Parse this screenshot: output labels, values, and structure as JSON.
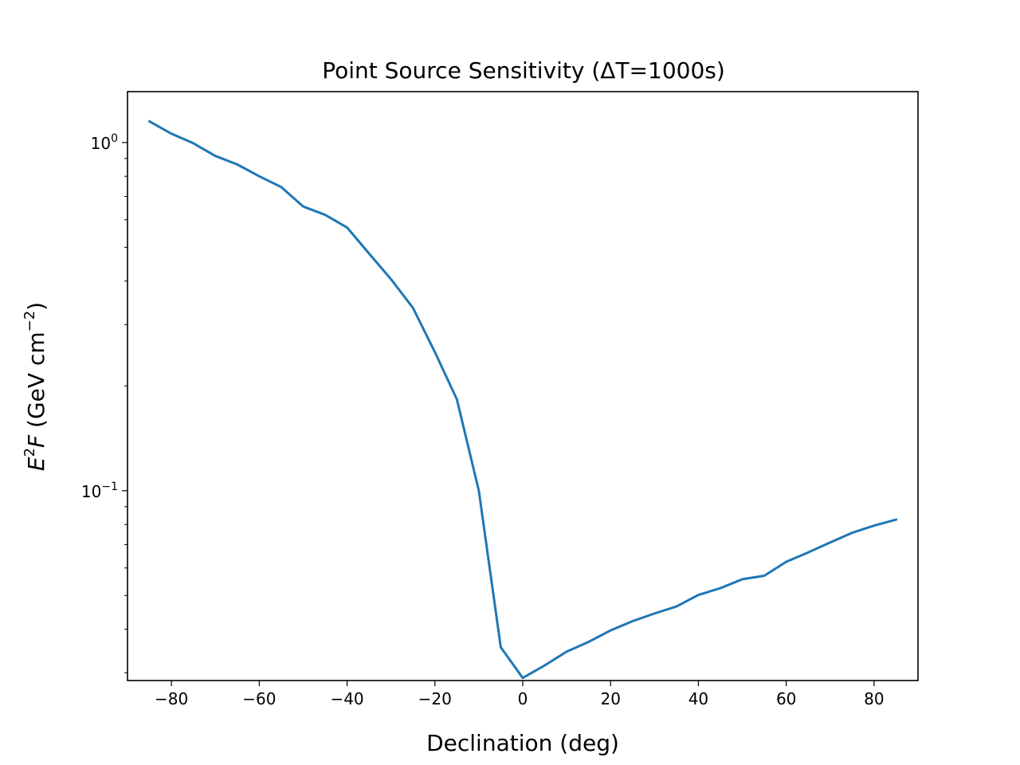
{
  "chart_data": {
    "type": "line",
    "title": "Point Source Sensitivity (ΔT=1000s)",
    "xlabel": "Declination (deg)",
    "ylabel": {
      "base": "E",
      "base_sup": "2",
      "var": "F",
      "unit_open": " (GeV cm",
      "unit_sup": "−2",
      "unit_close": ")"
    },
    "xlim": [
      -90,
      90
    ],
    "ylim": [
      0.0285,
      1.4
    ],
    "yscale": "log",
    "grid": false,
    "x_ticks": [
      -80,
      -60,
      -40,
      -20,
      0,
      20,
      40,
      60,
      80
    ],
    "x_tick_labels": [
      "−80",
      "−60",
      "−40",
      "−20",
      "0",
      "20",
      "40",
      "60",
      "80"
    ],
    "y_major_ticks": [
      {
        "value": 1.0,
        "base": "10",
        "exp": "0"
      },
      {
        "value": 0.1,
        "base": "10",
        "exp": "−1"
      }
    ],
    "series": [
      {
        "color": "#1f77b4",
        "x": [
          -85,
          -80,
          -75,
          -70,
          -65,
          -60,
          -55,
          -50,
          -45,
          -40,
          -35,
          -30,
          -25,
          -20,
          -15,
          -10,
          -5,
          0,
          5,
          10,
          15,
          20,
          25,
          30,
          35,
          40,
          45,
          50,
          55,
          60,
          65,
          70,
          75,
          80,
          85
        ],
        "y": [
          1.15,
          1.06,
          0.995,
          0.915,
          0.865,
          0.8,
          0.745,
          0.655,
          0.62,
          0.57,
          0.48,
          0.405,
          0.335,
          0.25,
          0.183,
          0.1,
          0.0355,
          0.029,
          0.0315,
          0.0345,
          0.0368,
          0.0397,
          0.0422,
          0.0444,
          0.0465,
          0.0502,
          0.0525,
          0.0557,
          0.057,
          0.0625,
          0.0665,
          0.071,
          0.0757,
          0.0794,
          0.0826
        ]
      }
    ]
  }
}
